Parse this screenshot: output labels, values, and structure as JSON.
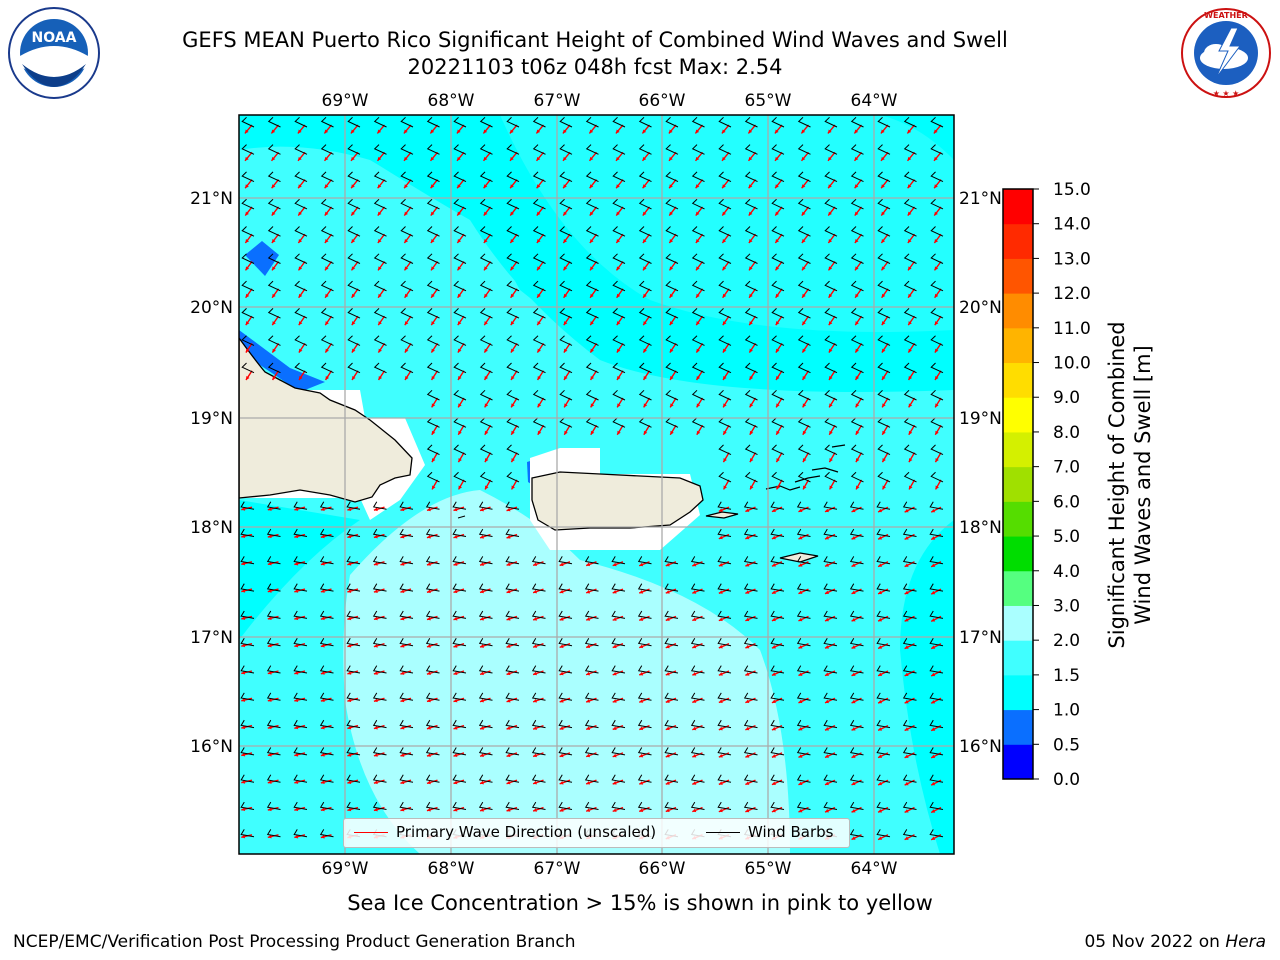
{
  "header": {
    "title_line1": "GEFS MEAN Puerto Rico Significant Height of Combined Wind Waves and Swell",
    "title_line2": "20221103 t06z 048h fcst   Max: 2.54"
  },
  "logos": {
    "left": {
      "icon": "noaa-logo",
      "text": "NOAA"
    },
    "right": {
      "icon": "nws-logo",
      "text": "NATIONAL WEATHER SERVICE"
    }
  },
  "map": {
    "lon_labels": [
      "69°W",
      "68°W",
      "67°W",
      "66°W",
      "65°W",
      "64°W"
    ],
    "lat_labels": [
      "21°N",
      "20°N",
      "19°N",
      "18°N",
      "17°N",
      "16°N"
    ],
    "lon_range": [
      -70,
      -63.25
    ],
    "lat_range": [
      15.0,
      21.75
    ],
    "grid": true,
    "land_color": "#efecdc",
    "coast_color": "#000000"
  },
  "legend": {
    "wave_label": "Primary Wave Direction (unscaled)",
    "wave_color": "#ff0000",
    "barb_label": "Wind Barbs",
    "barb_color": "#000000"
  },
  "colorbar": {
    "label": "Significant Height of Combined Wind Waves and Swell [m]",
    "ticks": [
      "0.0",
      "0.5",
      "1.0",
      "1.5",
      "2.0",
      "3.0",
      "4.0",
      "5.0",
      "6.0",
      "7.0",
      "8.0",
      "9.0",
      "10.0",
      "11.0",
      "12.0",
      "13.0",
      "14.0",
      "15.0"
    ],
    "colors": [
      "#0000ff",
      "#0a6fff",
      "#00ffff",
      "#40ffff",
      "#aaffff",
      "#55ff80",
      "#00dd00",
      "#55dd00",
      "#a0e000",
      "#d4f000",
      "#ffff00",
      "#ffdd00",
      "#ffb400",
      "#ff8c00",
      "#ff5500",
      "#ff2a00",
      "#ff0000"
    ]
  },
  "chart_data": {
    "type": "heatmap",
    "variable": "Significant Height of Combined Wind Waves and Swell",
    "units": "m",
    "max": 2.54,
    "levels": [
      0.0,
      0.5,
      1.0,
      1.5,
      2.0,
      3.0,
      4.0,
      5.0,
      6.0,
      7.0,
      8.0,
      9.0,
      10.0,
      11.0,
      12.0,
      13.0,
      14.0,
      15.0
    ]
  },
  "notes": {
    "sea_ice": "Sea Ice Concentration > 15% is shown in pink to yellow"
  },
  "footer": {
    "left": "NCEP/EMC/Verification Post Processing Product Generation Branch",
    "right_date": "05 Nov 2022 on",
    "right_host": "Hera"
  }
}
